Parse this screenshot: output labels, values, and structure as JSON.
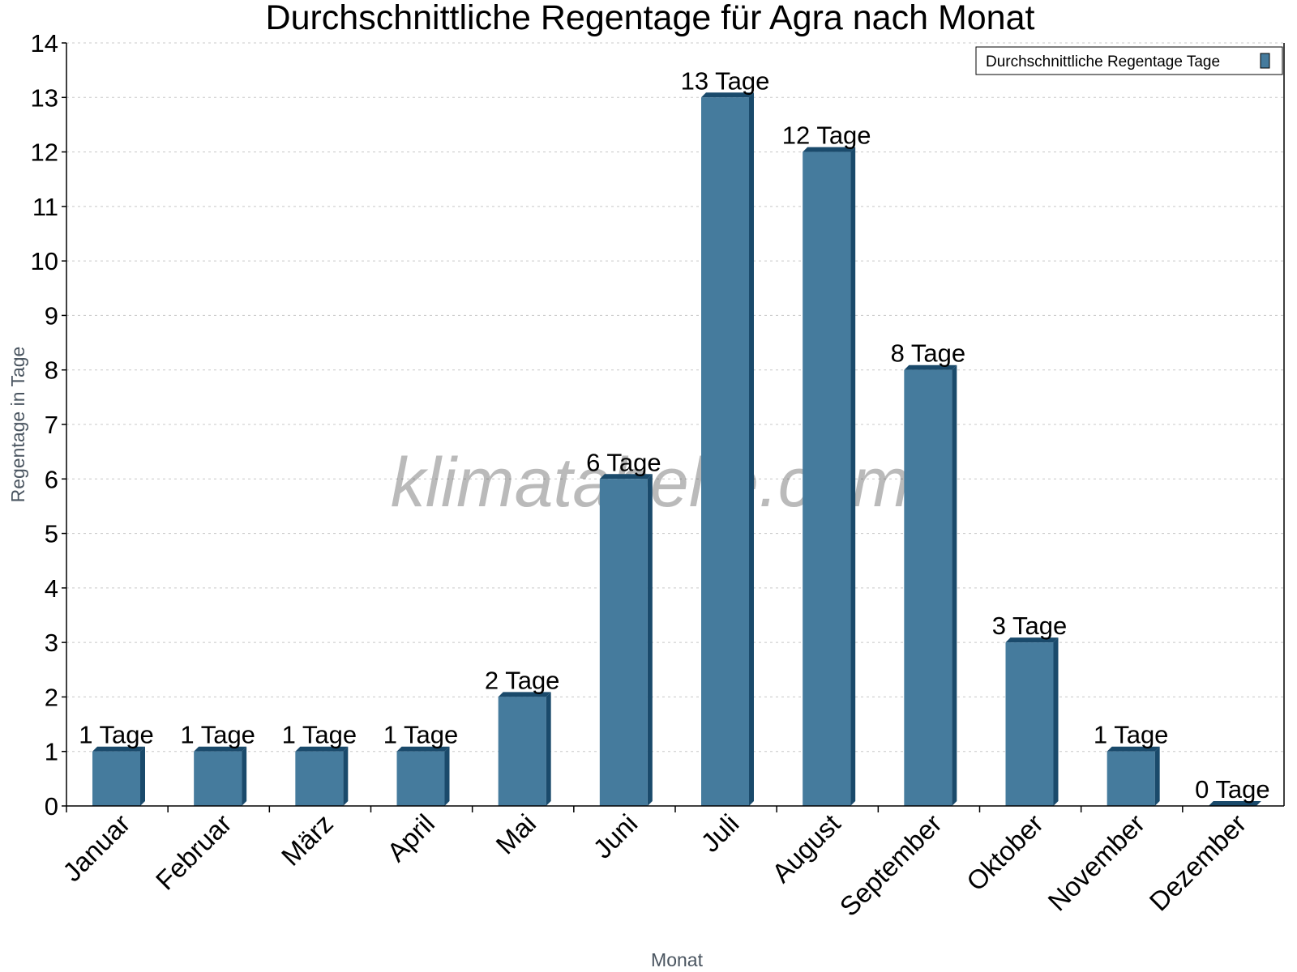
{
  "chart_data": {
    "type": "bar",
    "title": "Durchschnittliche Regentage für Agra nach Monat",
    "xlabel": "Monat",
    "ylabel": "Regentage in Tage",
    "categories": [
      "Januar",
      "Februar",
      "März",
      "April",
      "Mai",
      "Juni",
      "Juli",
      "August",
      "September",
      "Oktober",
      "November",
      "Dezember"
    ],
    "series": [
      {
        "name": "Durchschnittliche Regentage Tage",
        "values": [
          1,
          1,
          1,
          1,
          2,
          6,
          13,
          12,
          8,
          3,
          1,
          0
        ],
        "color": "#457b9d",
        "dark_color": "#1a4a6b"
      }
    ],
    "data_label_suffix": " Tage",
    "ylim": [
      0,
      14
    ],
    "yticks": [
      0,
      1,
      2,
      3,
      4,
      5,
      6,
      7,
      8,
      9,
      10,
      11,
      12,
      13,
      14
    ],
    "grid": true,
    "legend": "top-right",
    "watermark": "klimatabelle.com"
  }
}
